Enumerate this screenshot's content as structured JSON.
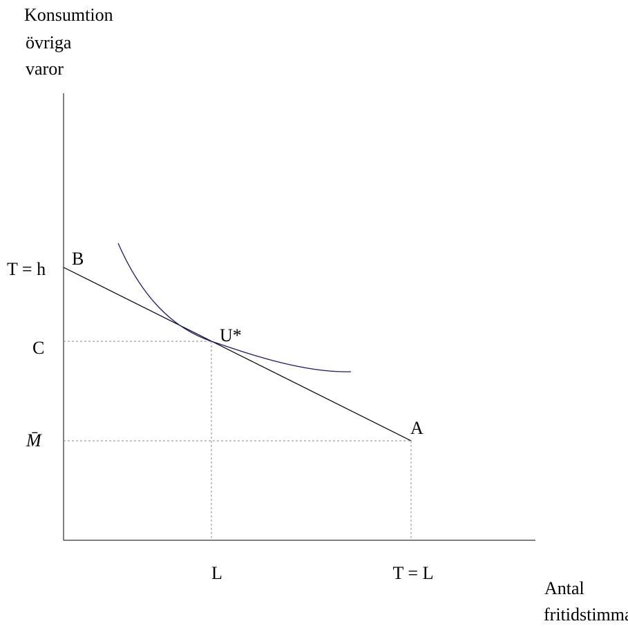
{
  "y_axis_label": [
    "Konsumtion",
    "övriga",
    "varor"
  ],
  "x_axis_label": [
    "Antal",
    "fritidstimmar"
  ],
  "y_labels": {
    "top": "T = h",
    "c": "C",
    "m": "M̄"
  },
  "x_labels": {
    "l": "L",
    "t": "T = L"
  },
  "points": {
    "b": "B",
    "u": "U*",
    "a": "A"
  }
}
